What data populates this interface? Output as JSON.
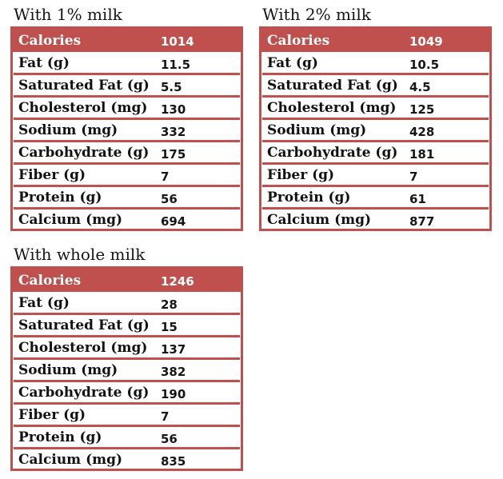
{
  "page": {
    "background_color": "#ffffff",
    "accent_color": "#C0504D"
  },
  "tables": [
    {
      "title": "With 1% milk",
      "header": {
        "label": "Calories",
        "value": "1014"
      },
      "rows": [
        {
          "label": "Fat (g)",
          "value": "11.5"
        },
        {
          "label": "Saturated Fat (g)",
          "value": "5.5"
        },
        {
          "label": "Cholesterol (mg)",
          "value": "130"
        },
        {
          "label": "Sodium (mg)",
          "value": "332"
        },
        {
          "label": "Carbohydrate (g)",
          "value": "175"
        },
        {
          "label": "Fiber (g)",
          "value": "7"
        },
        {
          "label": "Protein (g)",
          "value": "56"
        },
        {
          "label": "Calcium (mg)",
          "value": "694"
        }
      ]
    },
    {
      "title": "With 2% milk",
      "header": {
        "label": "Calories",
        "value": "1049"
      },
      "rows": [
        {
          "label": "Fat (g)",
          "value": "10.5"
        },
        {
          "label": "Saturated Fat (g)",
          "value": "4.5"
        },
        {
          "label": "Cholesterol (mg)",
          "value": "125"
        },
        {
          "label": "Sodium (mg)",
          "value": "428"
        },
        {
          "label": "Carbohydrate (g)",
          "value": "181"
        },
        {
          "label": "Fiber (g)",
          "value": "7"
        },
        {
          "label": "Protein (g)",
          "value": "61"
        },
        {
          "label": "Calcium (mg)",
          "value": "877"
        }
      ]
    },
    {
      "title": "With whole milk",
      "header": {
        "label": "Calories",
        "value": "1246"
      },
      "rows": [
        {
          "label": "Fat (g)",
          "value": "28"
        },
        {
          "label": "Saturated Fat (g)",
          "value": "15"
        },
        {
          "label": "Cholesterol (mg)",
          "value": "137"
        },
        {
          "label": "Sodium (mg)",
          "value": "382"
        },
        {
          "label": "Carbohydrate (g)",
          "value": "190"
        },
        {
          "label": "Fiber (g)",
          "value": "7"
        },
        {
          "label": "Protein (g)",
          "value": "56"
        },
        {
          "label": "Calcium (mg)",
          "value": "835"
        }
      ]
    }
  ]
}
